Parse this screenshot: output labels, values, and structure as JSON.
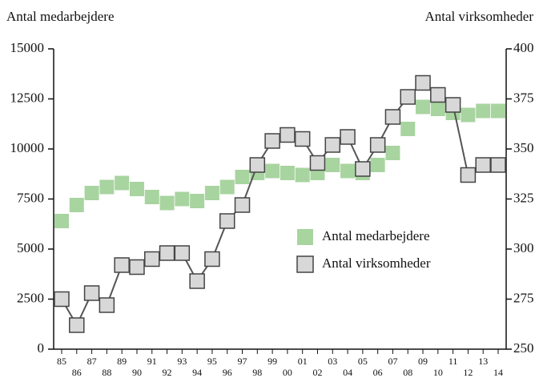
{
  "chart_data": {
    "type": "line",
    "y_label": "Antal medarbejdere",
    "y2_label": "Antal virksomheder",
    "categories": [
      "85",
      "86",
      "87",
      "88",
      "89",
      "90",
      "91",
      "92",
      "93",
      "94",
      "95",
      "96",
      "97",
      "98",
      "99",
      "00",
      "01",
      "02",
      "03",
      "04",
      "05",
      "06",
      "07",
      "08",
      "09",
      "10",
      "11",
      "12",
      "13",
      "14"
    ],
    "series": [
      {
        "name": "Antal medarbejdere",
        "color": "#a8d4a0",
        "markers_only": true,
        "values": [
          6400,
          7200,
          7800,
          8100,
          8300,
          8000,
          7600,
          7300,
          7500,
          7400,
          7800,
          8100,
          8600,
          8800,
          8900,
          8800,
          8700,
          8800,
          9200,
          8900,
          8800,
          9200,
          9800,
          11000,
          12100,
          12000,
          11800,
          11700,
          11900,
          11900
        ]
      },
      {
        "name": "Antal virksomheder",
        "color": "#d8d8d8",
        "axis": "y2",
        "values": [
          275,
          262,
          278,
          272,
          292,
          291,
          295,
          298,
          298,
          284,
          295,
          314,
          322,
          342,
          354,
          357,
          355,
          343,
          352,
          356,
          340,
          352,
          366,
          376,
          383,
          377,
          372,
          337,
          342,
          342
        ]
      }
    ],
    "ylim": [
      0,
      15000
    ],
    "yticks": [
      0,
      2500,
      5000,
      7500,
      10000,
      12500,
      15000
    ],
    "y2lim": [
      250,
      400
    ],
    "y2ticks": [
      250,
      275,
      300,
      325,
      350,
      375,
      400
    ]
  }
}
